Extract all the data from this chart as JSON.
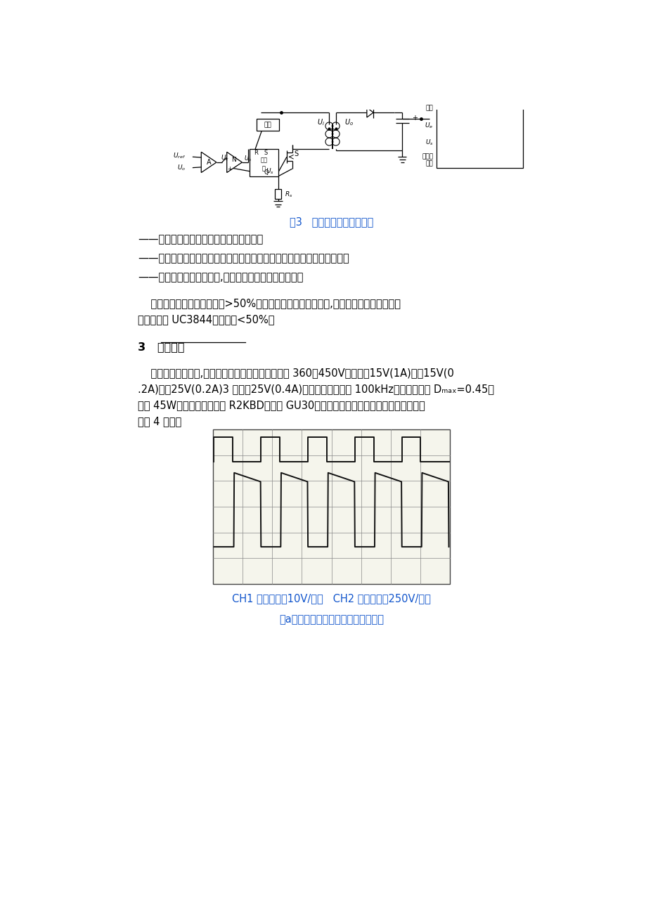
{
  "background_color": "#ffffff",
  "page_width": 9.2,
  "page_height": 13.02,
  "blue_color": "#1155CC",
  "fig3_caption": "图3   峰值电流模式控制原理",
  "bullet1": "——具有良好的线性调整率，反应速度快；",
  "bullet2": "——消除输出滤波电感带来的极点，使二阶系统变为一阶系统，稳定性好；",
  "bullet3": "——固有逐个脉冲电流限制,简化了过载保护和短路保护。",
  "para1_line1": "    电流型也有缺点，在占空比>50%时，必须进行电流斜坡补偿,否则系统不稳定。本文采",
  "para1_line2": "用控制芯片 UC3844，占空比<50%。",
  "section3_num": "3",
  "section3_title": "实验结果",
  "para2_line1": "    利用以上分析结果,设计了一台机内稳压电源。输入 360～450V；输出＋15V(1A)，－15V(0",
  "para2_line2": ".2A)，＋25V(0.2A)3 路，＋25V(0.4A)；开关工作频率为 100kHz，最大占空比 Dₘₐₓ=0.45；",
  "para2_line3": "功率 45W。变压器用铁氧体 R2KBD，罐型 GU30，按反激变压器设计原则设计。主要波形",
  "para2_line4": "如图 4 所示。",
  "ch1_label": "CH1 驱动电压（10V/格）   CH2 漏源电压（250V/格）",
  "fig4a_caption": "（a）功率管驱动电压与漏源电压波形"
}
